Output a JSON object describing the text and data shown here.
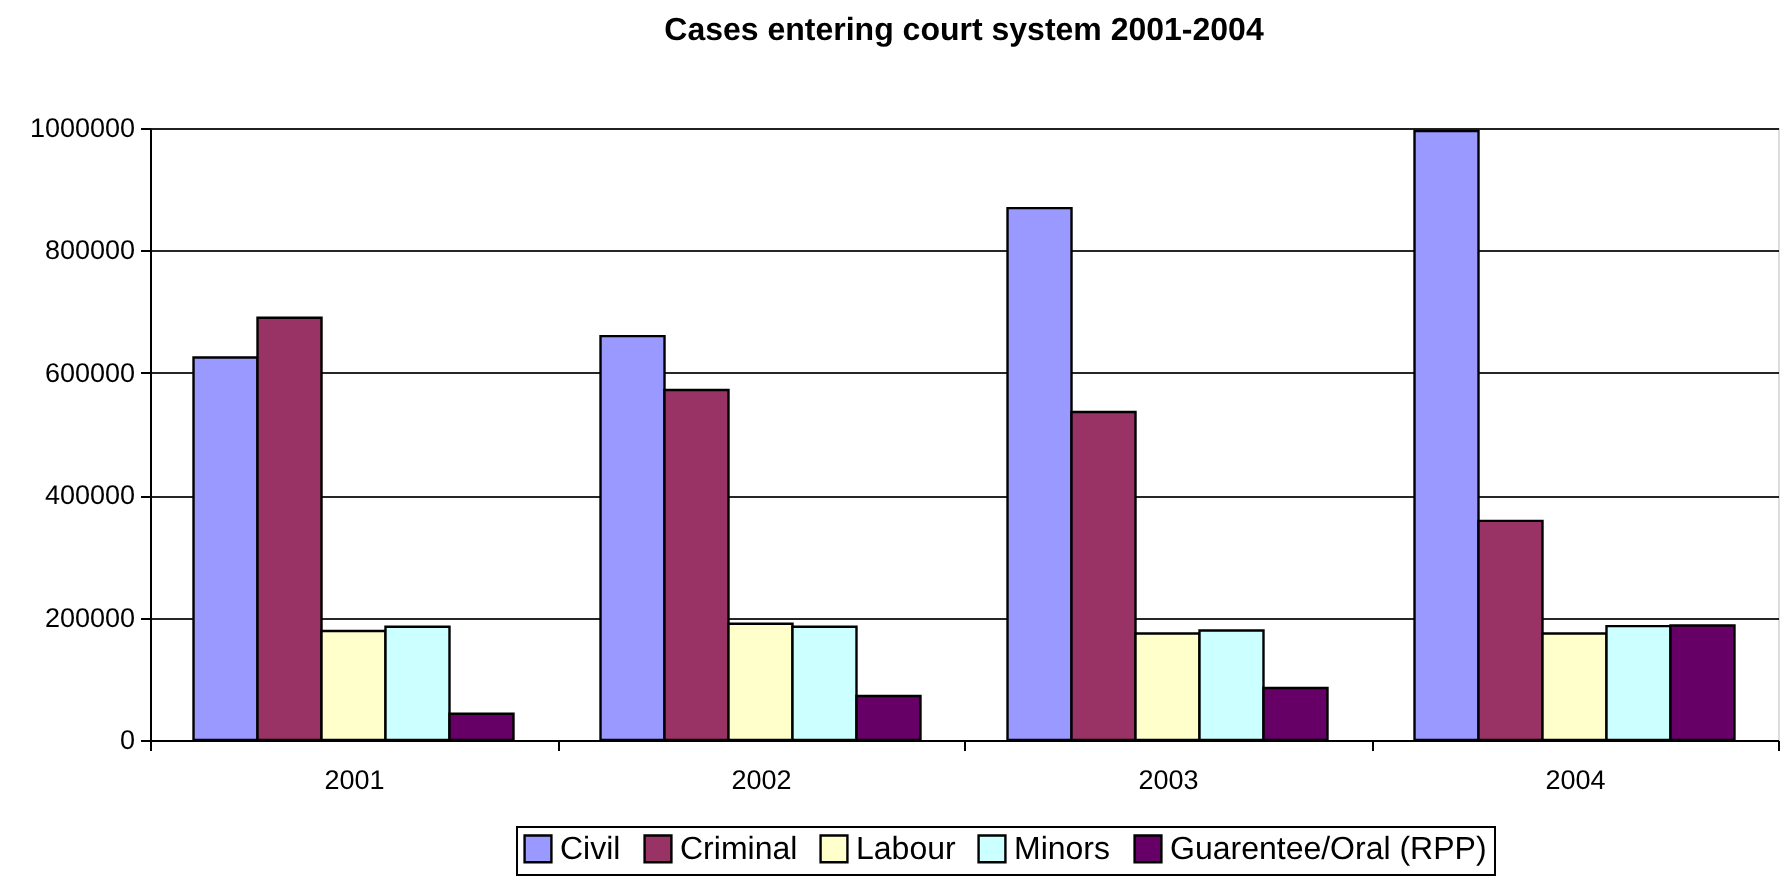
{
  "chart_data": {
    "type": "bar",
    "title": "Cases entering court system 2001-2004",
    "categories": [
      "2001",
      "2002",
      "2003",
      "2004"
    ],
    "series": [
      {
        "name": "Civil",
        "color": "#9999ff",
        "values": [
          625000,
          660000,
          869000,
          995000
        ]
      },
      {
        "name": "Criminal",
        "color": "#993366",
        "values": [
          690000,
          572000,
          536000,
          358000
        ]
      },
      {
        "name": "Labour",
        "color": "#ffffcc",
        "values": [
          178000,
          190000,
          174000,
          174000
        ]
      },
      {
        "name": "Minors",
        "color": "#ccffff",
        "values": [
          185000,
          185000,
          179000,
          186000
        ]
      },
      {
        "name": "Guarentee/Oral (RPP)",
        "color": "#660066",
        "values": [
          43000,
          72000,
          85000,
          187000
        ]
      }
    ],
    "ylim": [
      0,
      1000000
    ],
    "yticks": [
      0,
      200000,
      400000,
      600000,
      800000,
      1000000
    ],
    "grid": "y",
    "legend": "bottom"
  }
}
